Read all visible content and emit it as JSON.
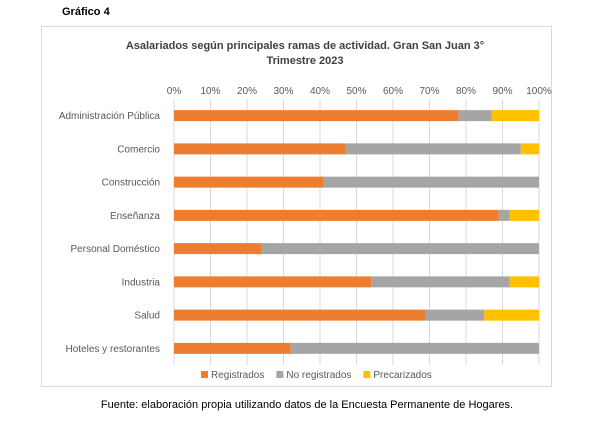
{
  "figure_label": "Gráfico 4",
  "source_note": "Fuente: elaboración propia utilizando datos de la Encuesta Permanente de Hogares.",
  "chart_data": {
    "type": "bar",
    "orientation": "horizontal",
    "stacked": true,
    "title_line1": "Asalariados según principales ramas de actividad. Gran San Juan 3°",
    "title_line2": "Trimestre 2023",
    "categories": [
      "Administración Pública",
      "Comercio",
      "Construcción",
      "Enseñanza",
      "Personal Doméstico",
      "Industria",
      "Salud",
      "Hoteles y restorantes"
    ],
    "series": [
      {
        "name": "Registrados",
        "color": "#ED7D31",
        "values": [
          78,
          47,
          41,
          89,
          24,
          54,
          69,
          32
        ]
      },
      {
        "name": "No registrados",
        "color": "#A5A5A5",
        "values": [
          9,
          48,
          59,
          3,
          76,
          38,
          16,
          68
        ]
      },
      {
        "name": "Precarizados",
        "color": "#FFC000",
        "values": [
          13,
          5,
          0,
          8,
          0,
          8,
          15,
          0
        ]
      }
    ],
    "xlim": [
      0,
      100
    ],
    "x_ticks": [
      "0%",
      "10%",
      "20%",
      "30%",
      "40%",
      "50%",
      "60%",
      "70%",
      "80%",
      "90%",
      "100%"
    ],
    "grid": true,
    "legend_position": "bottom"
  }
}
